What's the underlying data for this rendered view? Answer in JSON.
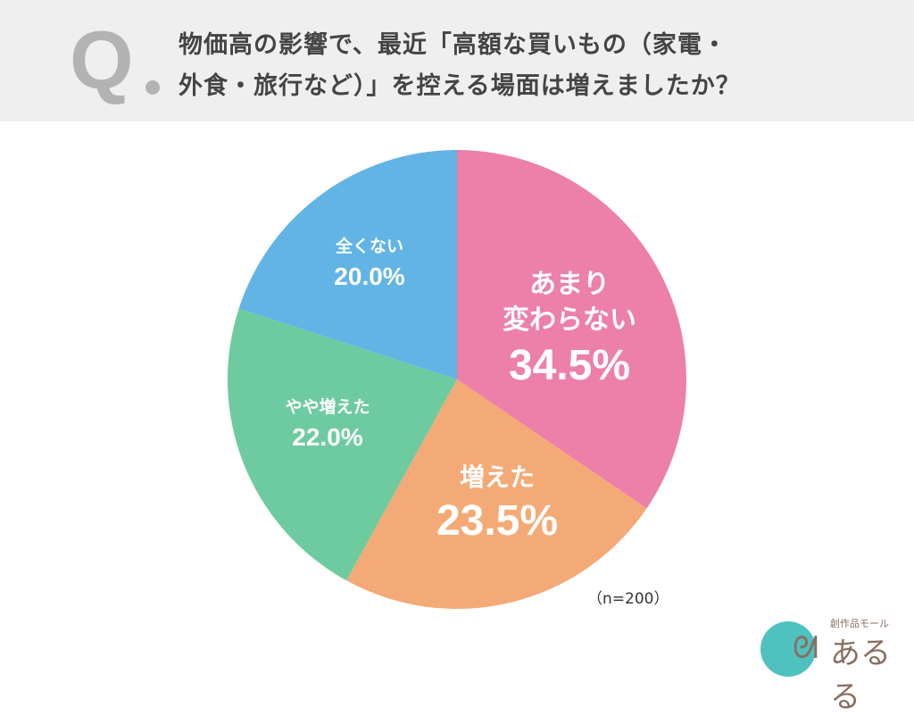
{
  "header": {
    "q_mark": "Q",
    "title_line1": "物価高の影響で、最近「高額な買いもの（家電・",
    "title_line2": "外食・旅行など）」を控える場面は増えましたか？"
  },
  "chart_data": {
    "type": "pie",
    "title": "物価高の影響で、最近「高額な買いもの（家電・外食・旅行など）」を控える場面は増えましたか？",
    "start": "top",
    "direction": "clockwise",
    "slices": [
      {
        "label": "あまり変わらない",
        "label_lines": [
          "あまり",
          "変わらない"
        ],
        "value": 34.5,
        "display": "34.5%",
        "color": "#ec80a9"
      },
      {
        "label": "増えた",
        "label_lines": [
          "増えた"
        ],
        "value": 23.5,
        "display": "23.5%",
        "color": "#f4aa76"
      },
      {
        "label": "やや増えた",
        "label_lines": [
          "やや増えた"
        ],
        "value": 22.0,
        "display": "22.0%",
        "color": "#6ecb9f"
      },
      {
        "label": "全くない",
        "label_lines": [
          "全くない"
        ],
        "value": 20.0,
        "display": "20.0%",
        "color": "#62b4e5"
      }
    ],
    "sample_note": "（n=200）"
  },
  "logo": {
    "text_small": "創作品モール",
    "text_big": "あるる",
    "mark": "あ"
  }
}
